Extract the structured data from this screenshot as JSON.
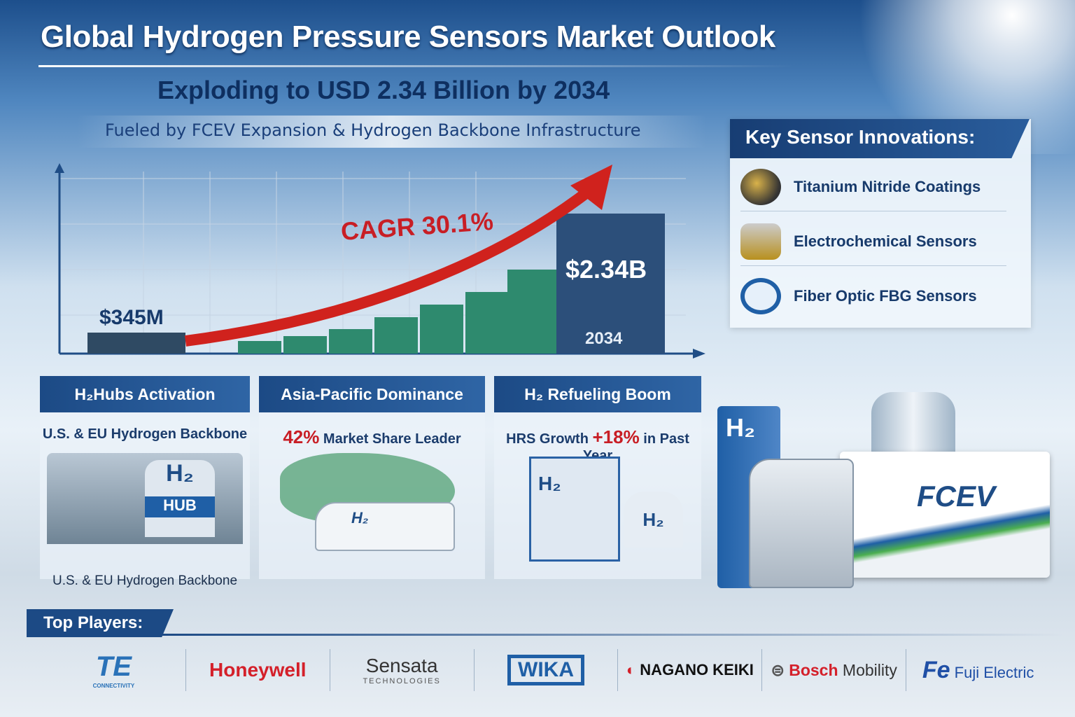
{
  "header": {
    "title": "Global Hydrogen Pressure Sensors Market Outlook",
    "subtitle": "Exploding to USD 2.34 Billion by 2034",
    "tagline": "Fueled by FCEV Expansion & Hydrogen Backbone Infrastructure"
  },
  "chart": {
    "start_label": "$345M",
    "end_label": "$2.34B",
    "end_year": "2034",
    "cagr_label": "CAGR 30.1%",
    "bar_color": "#2e8a6e",
    "arrow_color": "#d0221d"
  },
  "innovations": {
    "title": "Key Sensor Innovations:",
    "items": [
      {
        "label": "Titanium Nitride Coatings",
        "icon": "coated-sensor-icon"
      },
      {
        "label": "Electrochemical Sensors",
        "icon": "electrochemical-sensor-icon"
      },
      {
        "label": "Fiber Optic FBG Sensors",
        "icon": "fiber-optic-icon"
      }
    ]
  },
  "cards": [
    {
      "title": "H₂Hubs Activation",
      "subtitle": "U.S. & EU Hydrogen Backbone",
      "caption": "U.S. & EU Hydrogen Backbone",
      "image_text": "H₂",
      "image_text2": "HUB"
    },
    {
      "title": "Asia-Pacific Dominance",
      "highlight": "42%",
      "subtitle": "Market Share Leader",
      "image_text": "H₂"
    },
    {
      "title": "H₂ Refueling Boom",
      "prefix": "HRS Growth",
      "highlight": "+18%",
      "subtitle": "in Past Year",
      "image_text": "H₂",
      "image_text2": "H₂"
    }
  ],
  "scene": {
    "station_label": "H₂",
    "truck_label": "FCEV"
  },
  "players": {
    "title": "Top Players:",
    "logos": [
      {
        "name": "TE",
        "sub": "CONNECTIVITY"
      },
      {
        "name": "Honeywell"
      },
      {
        "name": "Sensata",
        "sub": "TECHNOLOGIES"
      },
      {
        "name": "WIKA"
      },
      {
        "name": "NAGANO KEIKI"
      },
      {
        "name": "Bosch",
        "suffix": "Mobility"
      },
      {
        "name": "Fuji Electric",
        "mark": "Fe"
      }
    ]
  }
}
